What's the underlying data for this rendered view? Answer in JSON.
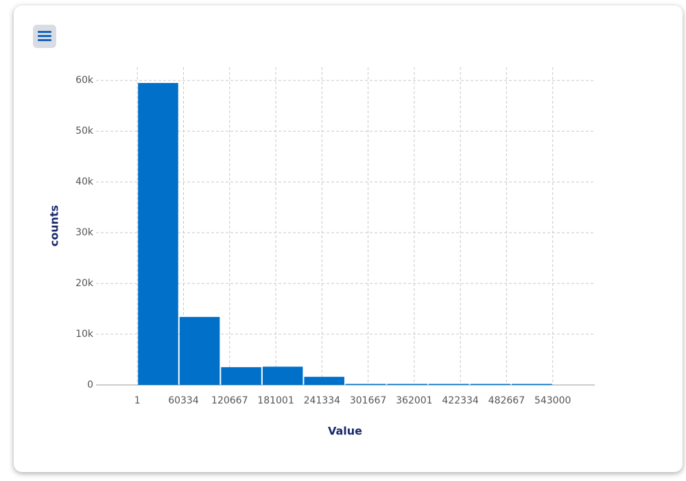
{
  "chart_data": {
    "type": "histogram",
    "x_label": "Value",
    "y_label": "counts",
    "bins": [
      1,
      54300.9,
      108600.8,
      162900.7,
      217200.6,
      271500.5,
      325800.4,
      380100.3,
      434400.2,
      488700.1,
      543000
    ],
    "values": [
      59500,
      13400,
      3500,
      3600,
      1600,
      200,
      200,
      200,
      200,
      200
    ],
    "color": "#0070c9",
    "xlim": [
      -54000,
      598000
    ],
    "xticks": [
      1,
      60334,
      120667,
      181001,
      241334,
      301667,
      362001,
      422334,
      482667,
      543000
    ],
    "ylim": [
      0,
      62600
    ],
    "yticks": [
      {
        "value": 0,
        "label": "0"
      },
      {
        "value": 10000,
        "label": "10k"
      },
      {
        "value": 20000,
        "label": "20k"
      },
      {
        "value": 30000,
        "label": "30k"
      },
      {
        "value": 40000,
        "label": "40k"
      },
      {
        "value": 50000,
        "label": "50k"
      },
      {
        "value": 60000,
        "label": "60k"
      }
    ],
    "grid": true
  }
}
